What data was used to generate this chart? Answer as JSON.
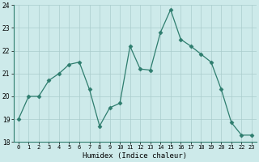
{
  "x": [
    0,
    1,
    2,
    3,
    4,
    5,
    6,
    7,
    8,
    9,
    10,
    11,
    12,
    13,
    14,
    15,
    16,
    17,
    18,
    19,
    20,
    21,
    22,
    23
  ],
  "y": [
    19.0,
    20.0,
    20.0,
    20.7,
    21.0,
    21.4,
    21.5,
    20.3,
    18.7,
    19.5,
    19.7,
    22.2,
    21.2,
    21.15,
    22.8,
    23.8,
    22.5,
    22.2,
    21.85,
    21.5,
    20.3,
    18.85,
    18.3,
    18.3
  ],
  "xlabel": "Humidex (Indice chaleur)",
  "ylim": [
    18,
    24
  ],
  "xlim": [
    -0.5,
    23.5
  ],
  "yticks": [
    18,
    19,
    20,
    21,
    22,
    23,
    24
  ],
  "xtick_labels": [
    "0",
    "1",
    "2",
    "3",
    "4",
    "5",
    "6",
    "7",
    "8",
    "9",
    "10",
    "11",
    "12",
    "13",
    "14",
    "15",
    "16",
    "17",
    "18",
    "19",
    "20",
    "21",
    "22",
    "23"
  ],
  "line_color": "#2e7d6e",
  "marker": "D",
  "marker_size": 2.5,
  "bg_color": "#cdeaea",
  "grid_color": "#aacccc",
  "fig_bg": "#cdeaea",
  "spine_color": "#2e7d6e"
}
